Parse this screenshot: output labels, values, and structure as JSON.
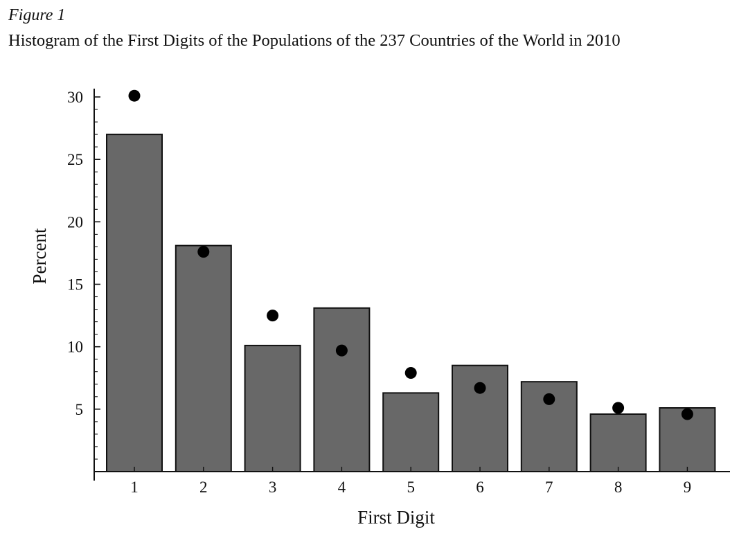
{
  "figure": {
    "label": "Figure 1",
    "title": "Histogram of the First Digits of the Populations of the 237 Countries of the World in 2010"
  },
  "chart_data": {
    "type": "bar",
    "title": "Histogram of the First Digits of the Populations of the 237 Countries of the World in 2010",
    "xlabel": "First Digit",
    "ylabel": "Percent",
    "categories": [
      "1",
      "2",
      "3",
      "4",
      "5",
      "6",
      "7",
      "8",
      "9"
    ],
    "series": [
      {
        "kind": "bar",
        "values": [
          27.0,
          18.1,
          10.1,
          13.1,
          6.3,
          8.5,
          7.2,
          4.6,
          5.1
        ]
      },
      {
        "kind": "scatter",
        "values": [
          30.1,
          17.6,
          12.5,
          9.7,
          7.9,
          6.7,
          5.8,
          5.1,
          4.6
        ]
      }
    ],
    "ylim": [
      0,
      30
    ],
    "yticks": [
      5,
      10,
      15,
      20,
      25,
      30
    ],
    "ytick_labels": [
      "5",
      "10",
      "15",
      "20",
      "25",
      "30"
    ],
    "y_minor_step": 1,
    "grid": false,
    "legend": "none",
    "colors": {
      "bar_fill": "#686868",
      "bar_stroke": "#111111",
      "dot": "#000000",
      "axis": "#111111"
    }
  }
}
